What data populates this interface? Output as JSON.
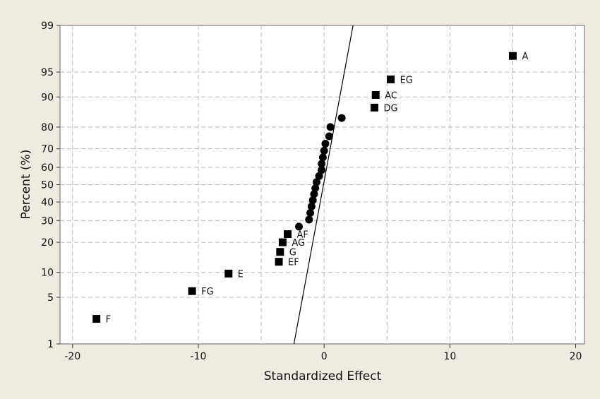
{
  "chart_data": {
    "type": "scatter",
    "title": "",
    "xlabel": "Standardized Effect",
    "ylabel": "Percent (%)",
    "xlim": [
      -21,
      20.7
    ],
    "ylim": [
      1,
      99
    ],
    "y_scale": "normal-probability",
    "grid": true,
    "x_ticks": [
      -20,
      -10,
      0,
      10,
      20
    ],
    "x_tick_labels": [
      "-20",
      "-10",
      "0",
      "10",
      "20"
    ],
    "x_grid": [
      -20,
      -15,
      -10,
      -5,
      0,
      5,
      10,
      15,
      20
    ],
    "y_ticks": [
      1,
      5,
      10,
      20,
      30,
      40,
      50,
      60,
      70,
      80,
      90,
      95,
      99
    ],
    "y_tick_labels": [
      "1",
      "5",
      "10",
      "20",
      "30",
      "40",
      "50",
      "60",
      "70",
      "80",
      "90",
      "95",
      "99"
    ],
    "reference_line": [
      {
        "x": -2.4,
        "y": 1
      },
      {
        "x": 2.3,
        "y": 99
      }
    ],
    "significant_effects": [
      {
        "label": "A",
        "x": 15.0,
        "y": 97.0
      },
      {
        "label": "EG",
        "x": 5.3,
        "y": 93.8
      },
      {
        "label": "AC",
        "x": 4.1,
        "y": 90.5
      },
      {
        "label": "DG",
        "x": 4.0,
        "y": 87.0
      },
      {
        "label": "AF",
        "x": -2.9,
        "y": 23.5
      },
      {
        "label": "AG",
        "x": -3.3,
        "y": 20.0
      },
      {
        "label": "G",
        "x": -3.5,
        "y": 16.3
      },
      {
        "label": "EF",
        "x": -3.6,
        "y": 13.0
      },
      {
        "label": "E",
        "x": -7.6,
        "y": 9.7
      },
      {
        "label": "FG",
        "x": -10.5,
        "y": 6.0
      },
      {
        "label": "F",
        "x": -18.1,
        "y": 2.5
      }
    ],
    "nonsignificant_effects": [
      {
        "x": 1.4,
        "y": 83.5
      },
      {
        "x": 0.5,
        "y": 80.0
      },
      {
        "x": 0.4,
        "y": 76.0
      },
      {
        "x": 0.1,
        "y": 72.5
      },
      {
        "x": 0.0,
        "y": 69.0
      },
      {
        "x": -0.1,
        "y": 65.5
      },
      {
        "x": -0.2,
        "y": 62.0
      },
      {
        "x": -0.2,
        "y": 58.5
      },
      {
        "x": -0.4,
        "y": 55.0
      },
      {
        "x": -0.6,
        "y": 51.5
      },
      {
        "x": -0.7,
        "y": 48.0
      },
      {
        "x": -0.8,
        "y": 44.5
      },
      {
        "x": -0.9,
        "y": 41.0
      },
      {
        "x": -1.0,
        "y": 37.5
      },
      {
        "x": -1.1,
        "y": 34.0
      },
      {
        "x": -1.2,
        "y": 30.5
      },
      {
        "x": -2.0,
        "y": 27.0
      }
    ]
  }
}
